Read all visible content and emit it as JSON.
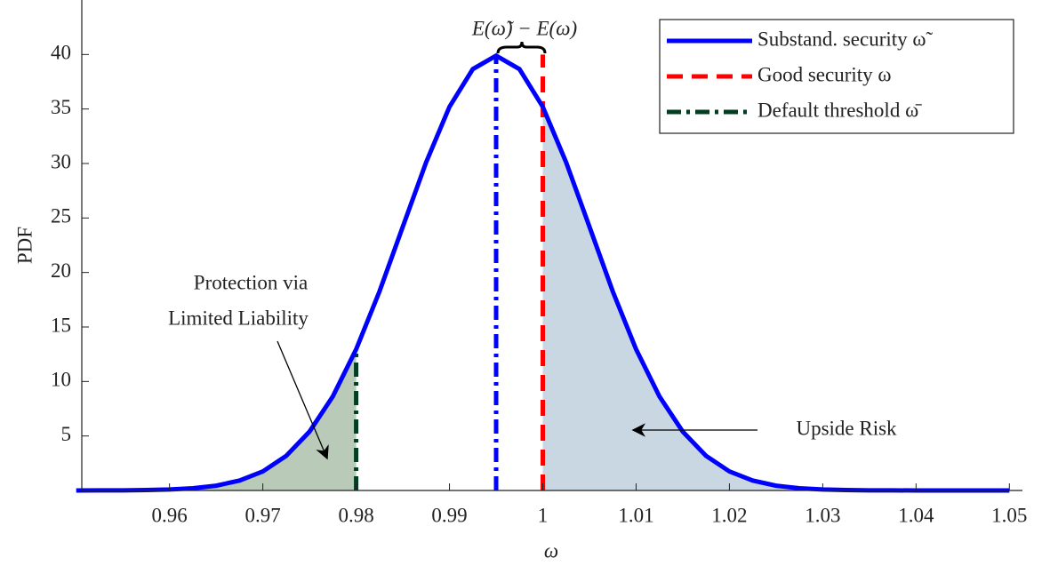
{
  "chart_data": {
    "type": "line",
    "ylabel": "PDF",
    "xlabel": "ω",
    "xlim": [
      0.9506,
      1.0514
    ],
    "ylim": [
      0,
      45
    ],
    "xticks": [
      0.96,
      0.97,
      0.98,
      0.99,
      1,
      1.01,
      1.02,
      1.03,
      1.04,
      1.05
    ],
    "yticks": [
      5,
      10,
      15,
      20,
      25,
      30,
      35,
      40
    ],
    "series": [
      {
        "name": "Substand. security ω̃",
        "color": "#0000ff",
        "style": "solid",
        "x": [
          0.95,
          0.9525,
          0.955,
          0.9575,
          0.96,
          0.9625,
          0.965,
          0.9675,
          0.97,
          0.9725,
          0.975,
          0.9775,
          0.98,
          0.9825,
          0.985,
          0.9875,
          0.99,
          0.9925,
          0.995,
          0.9975,
          1,
          1.0025,
          1.005,
          1.0075,
          1.01,
          1.0125,
          1.015,
          1.0175,
          1.02,
          1.0225,
          1.025,
          1.0275,
          1.03,
          1.0325,
          1.035,
          1.0375,
          1.04,
          1.0425,
          1.045,
          1.0475,
          1.05
        ],
        "values": [
          0,
          0.01,
          0.01,
          0.04,
          0.09,
          0.2,
          0.44,
          0.91,
          1.75,
          3.17,
          5.4,
          8.63,
          12.95,
          18.26,
          24.2,
          30.11,
          35.2,
          38.66,
          39.89,
          38.66,
          35.2,
          30.11,
          24.2,
          18.26,
          12.95,
          8.63,
          5.4,
          3.17,
          1.75,
          0.91,
          0.44,
          0.2,
          0.09,
          0.04,
          0.01,
          0.01,
          0,
          0,
          0,
          0,
          0
        ]
      },
      {
        "name": "Good security ω",
        "color": "#ff0000",
        "style": "dash",
        "x": [
          1,
          1
        ],
        "values": [
          0,
          40
        ]
      },
      {
        "name": "Default threshold ω̄",
        "color": "#004020",
        "style": "dashdot",
        "x": [
          0.98,
          0.98
        ],
        "values": [
          0,
          12.95
        ]
      }
    ],
    "mean_line": {
      "x": [
        0.995,
        0.995
      ],
      "values": [
        0,
        40
      ],
      "color": "#0000ff",
      "style": "dashdot"
    },
    "shade": [
      {
        "to": 0.98,
        "color": "#b9cab9"
      },
      {
        "from": 1,
        "color": "#c9d7e3"
      }
    ],
    "annotations": {
      "difference": "E(ω̃) − E(ω)",
      "protection": [
        "Protection via",
        "Limited Liability"
      ],
      "upside": "Upside Risk"
    }
  }
}
